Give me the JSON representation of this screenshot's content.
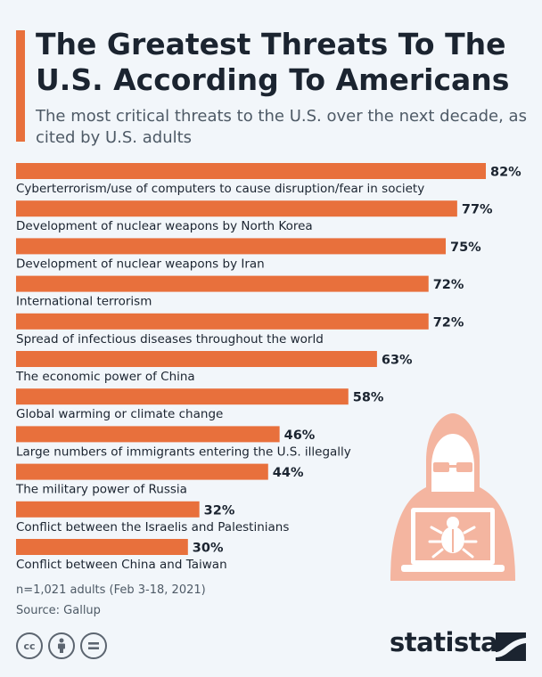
{
  "header": {
    "title": "The Greatest Threats To The U.S. According To Americans",
    "subtitle": "The most critical threats to the U.S. over the next decade, as cited by U.S. adults"
  },
  "chart_data": {
    "type": "bar",
    "orientation": "horizontal",
    "categories": [
      "Cyberterrorism/use of computers to cause disruption/fear in society",
      "Development of nuclear weapons by North Korea",
      "Development of nuclear weapons by Iran",
      "International terrorism",
      "Spread of infectious diseases throughout the world",
      "The economic power of China",
      "Global warming or climate change",
      "Large numbers of immigrants entering the U.S. illegally",
      "The military power of Russia",
      "Conflict between the Israelis and Palestinians",
      "Conflict between China and Taiwan"
    ],
    "values": [
      82,
      77,
      75,
      72,
      72,
      63,
      58,
      46,
      44,
      32,
      30
    ],
    "value_labels": [
      "82%",
      "77%",
      "75%",
      "72%",
      "72%",
      "63%",
      "58%",
      "46%",
      "44%",
      "32%",
      "30%"
    ],
    "unit": "%",
    "bar_color": "#e8703c",
    "grid": false
  },
  "footer": {
    "note": "n=1,021 adults (Feb 3-18, 2021)",
    "source": "Source: Gallup",
    "license_icons": [
      "cc-icon",
      "attribution-icon",
      "no-derivatives-icon"
    ],
    "cc_text": "cc",
    "brand": "statista"
  },
  "illustration": "hacker-icon",
  "colors": {
    "accent": "#e8703c",
    "background": "#f2f6fa",
    "illustration": "#f4b5a0"
  }
}
